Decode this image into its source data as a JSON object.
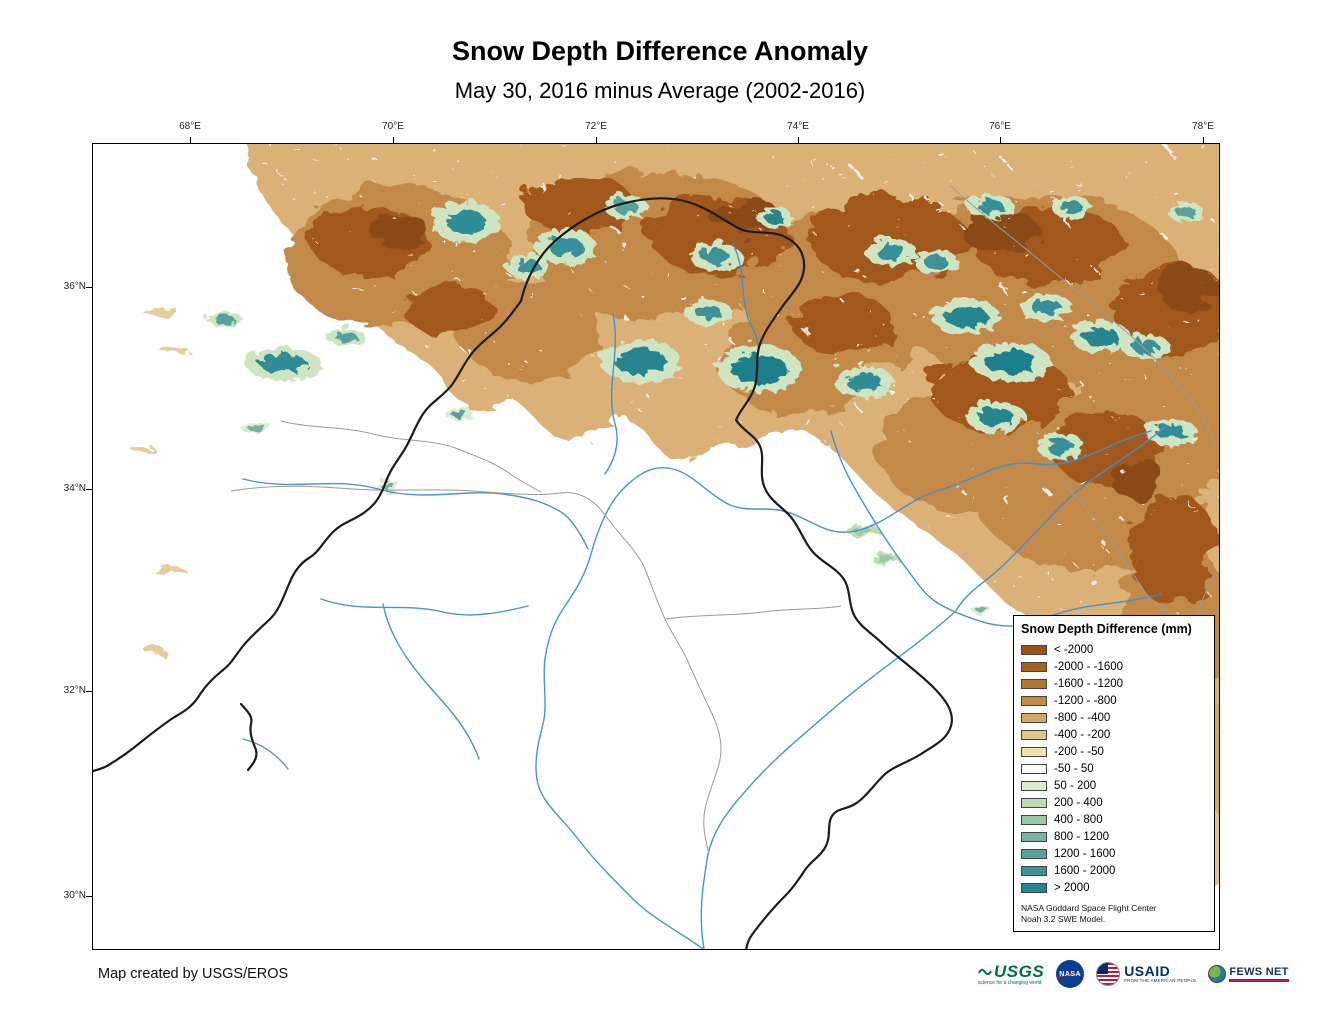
{
  "title": "Snow Depth Difference Anomaly",
  "subtitle": "May 30, 2016 minus Average (2002-2016)",
  "map": {
    "lon_ticks": [
      "68°E",
      "70°E",
      "72°E",
      "74°E",
      "76°E",
      "78°E"
    ],
    "lat_ticks": [
      "36°N",
      "34°N",
      "32°N",
      "30°N"
    ]
  },
  "legend": {
    "title": "Snow Depth Difference (mm)",
    "entries": [
      {
        "label": "< -2000",
        "color": "#9b5315"
      },
      {
        "label": "-2000 - -1600",
        "color": "#a6601f"
      },
      {
        "label": "-1600 - -1200",
        "color": "#b5752f"
      },
      {
        "label": "-1200 - -800",
        "color": "#c48a45"
      },
      {
        "label": "-800 - -400",
        "color": "#d4a765"
      },
      {
        "label": "-400 - -200",
        "color": "#e4c388"
      },
      {
        "label": "-200 - -50",
        "color": "#f2e2ae"
      },
      {
        "label": "-50 - 50",
        "color": "#ffffff"
      },
      {
        "label": "50 - 200",
        "color": "#dcecd1"
      },
      {
        "label": "200 - 400",
        "color": "#bddcb0"
      },
      {
        "label": "400 - 800",
        "color": "#99c8a5"
      },
      {
        "label": "800 - 1200",
        "color": "#77b2a2"
      },
      {
        "label": "1200 - 1600",
        "color": "#57a09e"
      },
      {
        "label": "1600 - 2000",
        "color": "#3d9197"
      },
      {
        "label": "> 2000",
        "color": "#26858e"
      }
    ],
    "note_line1": "NASA Goddard Space Flight Center",
    "note_line2": "Noah 3.2 SWE Model."
  },
  "credit": "Map created by USGS/EROS",
  "logos": [
    {
      "id": "usgs",
      "label": "USGS",
      "tagline": "science for a changing world",
      "color": "#00703c"
    },
    {
      "id": "nasa",
      "label": "NASA",
      "tagline": "",
      "color": "#0b3d91"
    },
    {
      "id": "usaid",
      "label": "USAID",
      "tagline": "FROM THE AMERICAN PEOPLE",
      "color": "#002f6c"
    },
    {
      "id": "fews",
      "label": "FEWS NET",
      "tagline": "",
      "color": "#16324c",
      "accent": "#b31942"
    }
  ],
  "palette": {
    "river": "#3f8fd2",
    "border": "#1c1c1c",
    "admin": "#9a9a9a"
  }
}
